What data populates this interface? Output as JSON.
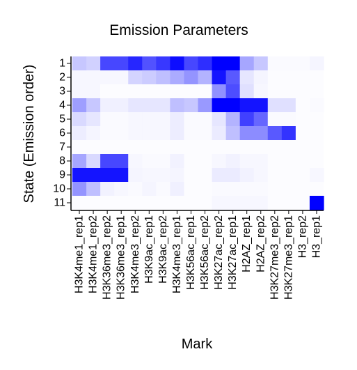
{
  "chart_data": {
    "type": "heatmap",
    "title": "Emission Parameters",
    "xlabel": "Mark",
    "ylabel": "State (Emission order)",
    "rows": [
      "1",
      "2",
      "3",
      "4",
      "5",
      "6",
      "7",
      "8",
      "9",
      "10",
      "11"
    ],
    "columns": [
      "H3K4me1_rep1",
      "H3K4me1_rep2",
      "H3K36me3_rep2",
      "H3K36me3_rep1",
      "H3K4me3_rep2",
      "H3K9ac_rep1",
      "H3K9ac_rep2",
      "H3K4me3_rep1",
      "H3K56ac_rep1",
      "H3K56ac_rep2",
      "H3K27ac_rep2",
      "H3K27ac_rep1",
      "H2AZ_rep1",
      "H2AZ_rep2",
      "H3K27me3_rep2",
      "H3K27me3_rep1",
      "H3_rep2",
      "H3_rep1"
    ],
    "value_range": [
      0,
      1
    ],
    "color_low": "#ffffff",
    "color_high": "#0000ff",
    "values": [
      [
        0.22,
        0.18,
        0.72,
        0.72,
        0.85,
        0.68,
        0.78,
        0.95,
        0.72,
        0.82,
        1.0,
        1.0,
        0.35,
        0.22,
        0.02,
        0.02,
        0.02,
        0.04
      ],
      [
        0.03,
        0.03,
        0.03,
        0.03,
        0.17,
        0.2,
        0.25,
        0.33,
        0.42,
        0.3,
        0.92,
        0.65,
        0.1,
        0.04,
        0.01,
        0.01,
        0.01,
        0.01
      ],
      [
        0.03,
        0.03,
        0.01,
        0.01,
        0.01,
        0.01,
        0.01,
        0.01,
        0.01,
        0.01,
        0.43,
        0.7,
        0.12,
        0.03,
        0.01,
        0.01,
        0.01,
        0.01
      ],
      [
        0.38,
        0.22,
        0.06,
        0.06,
        0.1,
        0.1,
        0.1,
        0.25,
        0.22,
        0.4,
        1.0,
        1.0,
        0.92,
        0.92,
        0.12,
        0.12,
        0.01,
        0.02
      ],
      [
        0.15,
        0.1,
        0.02,
        0.02,
        0.03,
        0.03,
        0.03,
        0.07,
        0.02,
        0.02,
        0.1,
        0.3,
        0.75,
        0.6,
        0.02,
        0.02,
        0.01,
        0.01
      ],
      [
        0.07,
        0.04,
        0.02,
        0.02,
        0.03,
        0.03,
        0.03,
        0.07,
        0.02,
        0.02,
        0.08,
        0.25,
        0.45,
        0.45,
        0.65,
        0.8,
        0.01,
        0.01
      ],
      [
        0.01,
        0.01,
        0.01,
        0.01,
        0.01,
        0.01,
        0.01,
        0.01,
        0.01,
        0.01,
        0.01,
        0.01,
        0.01,
        0.01,
        0.01,
        0.01,
        0.01,
        0.01
      ],
      [
        0.35,
        0.15,
        0.72,
        0.72,
        0.03,
        0.02,
        0.02,
        0.05,
        0.01,
        0.01,
        0.03,
        0.05,
        0.03,
        0.03,
        0.01,
        0.01,
        0.01,
        0.01
      ],
      [
        0.92,
        0.92,
        0.92,
        0.92,
        0.04,
        0.03,
        0.03,
        0.04,
        0.01,
        0.01,
        0.08,
        0.08,
        0.05,
        0.03,
        0.01,
        0.01,
        0.01,
        0.03
      ],
      [
        0.42,
        0.25,
        0.05,
        0.03,
        0.02,
        0.04,
        0.02,
        0.06,
        0.01,
        0.01,
        0.02,
        0.02,
        0.02,
        0.02,
        0.01,
        0.01,
        0.01,
        0.01
      ],
      [
        0.01,
        0.01,
        0.01,
        0.01,
        0.01,
        0.01,
        0.01,
        0.01,
        0.01,
        0.01,
        0.03,
        0.03,
        0.03,
        0.03,
        0.01,
        0.01,
        0.01,
        1.0
      ]
    ],
    "grid": false
  }
}
